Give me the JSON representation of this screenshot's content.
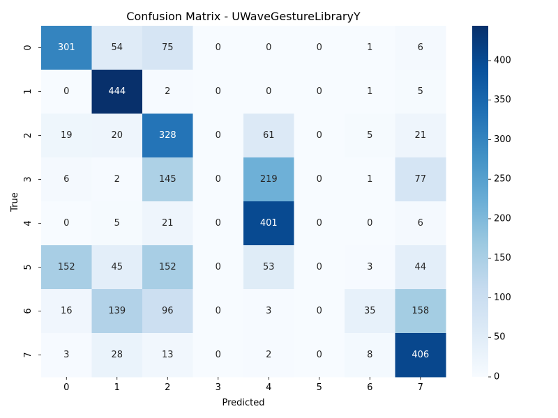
{
  "chart_data": {
    "type": "heatmap",
    "title": "Confusion Matrix - UWaveGestureLibraryY",
    "xlabel": "Predicted",
    "ylabel": "True",
    "x_categories": [
      "0",
      "1",
      "2",
      "3",
      "4",
      "5",
      "6",
      "7"
    ],
    "y_categories": [
      "0",
      "1",
      "2",
      "3",
      "4",
      "5",
      "6",
      "7"
    ],
    "matrix": [
      [
        301,
        54,
        75,
        0,
        0,
        0,
        1,
        6
      ],
      [
        0,
        444,
        2,
        0,
        0,
        0,
        1,
        5
      ],
      [
        19,
        20,
        328,
        0,
        61,
        0,
        5,
        21
      ],
      [
        6,
        2,
        145,
        0,
        219,
        0,
        1,
        77
      ],
      [
        0,
        5,
        21,
        0,
        401,
        0,
        0,
        6
      ],
      [
        152,
        45,
        152,
        0,
        53,
        0,
        3,
        44
      ],
      [
        16,
        139,
        96,
        0,
        3,
        0,
        35,
        158
      ],
      [
        3,
        28,
        13,
        0,
        2,
        0,
        8,
        406
      ]
    ],
    "colorscale": "Blues",
    "colorbar": {
      "range": [
        0,
        444
      ],
      "ticks": [
        0,
        50,
        100,
        150,
        200,
        250,
        300,
        350,
        400
      ]
    },
    "grid": false
  }
}
